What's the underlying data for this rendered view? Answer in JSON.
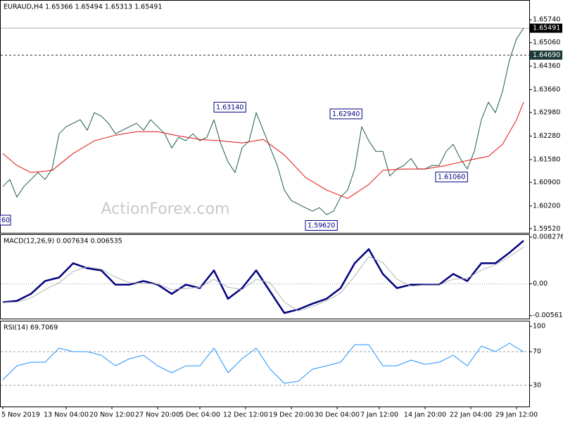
{
  "chart_data": [
    {
      "type": "line",
      "title": "EURAUD,H4  1.65366 1.65494 1.65313 1.65491",
      "watermark": "ActionForex.com",
      "clipped_label": "60",
      "xlim": [
        0,
        74
      ],
      "ylim": [
        1.594,
        1.6633
      ],
      "yticks": [
        {
          "value": 1.6574,
          "label": "1.65740"
        },
        {
          "value": 1.6506,
          "label": "1.65060"
        },
        {
          "value": 1.6436,
          "label": "1.64360"
        },
        {
          "value": 1.6366,
          "label": "1.63660"
        },
        {
          "value": 1.6298,
          "label": "1.62980"
        },
        {
          "value": 1.6228,
          "label": "1.62280"
        },
        {
          "value": 1.6158,
          "label": "1.61580"
        },
        {
          "value": 1.609,
          "label": "1.60900"
        },
        {
          "value": 1.602,
          "label": "1.60200"
        },
        {
          "value": 1.5952,
          "label": "1.59520"
        }
      ],
      "hlines": [
        {
          "value": 1.65491,
          "label": "1.65491",
          "style": "solid"
        },
        {
          "value": 1.6469,
          "label": "1.64690",
          "style": "dashed"
        }
      ],
      "annotations": [
        {
          "x": 30,
          "value": 1.6314,
          "label": "1.63140"
        },
        {
          "x": 46.5,
          "value": 1.6294,
          "label": "1.62940"
        },
        {
          "x": 61.5,
          "value": 1.6106,
          "label": "1.61060"
        },
        {
          "x": 43,
          "value": 1.5962,
          "label": "1.59620"
        }
      ],
      "series": [
        {
          "color": "#1d5a4a",
          "values": [
            1.60777,
            1.60986,
            1.60463,
            1.60777,
            1.60986,
            1.61195,
            1.60986,
            1.613,
            1.62347,
            1.62557,
            1.62661,
            1.62766,
            1.62452,
            1.62976,
            1.62871,
            1.62661,
            1.62347,
            1.62452,
            1.62557,
            1.62661,
            1.62452,
            1.62766,
            1.62557,
            1.62347,
            1.61928,
            1.62243,
            1.62138,
            1.62347,
            1.62138,
            1.62243,
            1.62766,
            1.62033,
            1.6151,
            1.61195,
            1.61928,
            1.62138,
            1.62976,
            1.62452,
            1.61928,
            1.61405,
            1.60672,
            1.60358,
            1.60253,
            1.60148,
            1.60044,
            1.60148,
            1.59939,
            1.60044,
            1.60463,
            1.60672,
            1.613,
            1.62557,
            1.62138,
            1.61824,
            1.61824,
            1.61091,
            1.613,
            1.61405,
            1.61614,
            1.613,
            1.613,
            1.61405,
            1.61405,
            1.61824,
            1.62033,
            1.61614,
            1.613,
            1.61824,
            1.62766,
            1.6329,
            1.62976,
            1.63604,
            1.64546,
            1.65175,
            1.65491
          ]
        },
        {
          "color": "#e01010",
          "x": [
            0,
            2,
            4,
            7,
            10,
            13,
            16,
            19,
            22,
            25,
            28,
            31,
            34,
            37,
            40,
            43,
            46,
            49,
            52,
            54,
            57,
            60,
            63,
            66,
            69,
            71,
            73,
            74
          ],
          "values": [
            1.61761,
            1.61405,
            1.61195,
            1.61258,
            1.61761,
            1.62138,
            1.62305,
            1.6241,
            1.6241,
            1.62285,
            1.6218,
            1.62138,
            1.62075,
            1.6218,
            1.61719,
            1.61049,
            1.60672,
            1.60421,
            1.60839,
            1.61258,
            1.613,
            1.613,
            1.61405,
            1.61552,
            1.61677,
            1.62033,
            1.62766,
            1.6329
          ]
        }
      ]
    },
    {
      "type": "line",
      "title": "MACD(12,26,9) 0.007634 0.006535",
      "xlim": [
        0,
        37
      ],
      "ylim": [
        -0.00614,
        0.00878
      ],
      "yticks": [
        0.008276,
        {
          "value": 0,
          "label": "0.00"
        },
        -0.00561
      ],
      "levels": [
        0
      ],
      "series": [
        {
          "color": "#000080",
          "values": [
            -0.00326,
            -0.00301,
            -0.00176,
            0.0005,
            0.00113,
            0.00364,
            0.00276,
            0.00238,
            -0.00013,
            -0.00013,
            0.0005,
            -0.00013,
            -0.00176,
            -0.00013,
            -0.00075,
            0.00238,
            -0.00263,
            -0.00075,
            0.00238,
            -0.00138,
            -0.00514,
            -0.00451,
            -0.00351,
            -0.00263,
            -0.00075,
            0.00364,
            0.00614,
            0.00176,
            -0.00075,
            -0.00013,
            -0.00013,
            -0.00013,
            0.00176,
            0.0005,
            0.00364,
            0.00364,
            0.00552,
            0.00763
          ]
        },
        {
          "color": "#b4b4b4",
          "values": [
            -0.0033,
            -0.0032,
            -0.0025,
            -0.001,
            0.0002,
            0.0022,
            0.003,
            0.0026,
            0.0012,
            0.0002,
            0.0001,
            0,
            -0.001,
            -0.0008,
            -0.0006,
            0.0008,
            -0.0006,
            -0.001,
            0.0008,
            0.0002,
            -0.0032,
            -0.0048,
            -0.004,
            -0.003,
            -0.0016,
            0.0014,
            0.0048,
            0.0038,
            0.0008,
            -0.0004,
            -0.0002,
            -0.0002,
            0.0008,
            0.001,
            0.0024,
            0.0034,
            0.0048,
            0.0065
          ]
        }
      ]
    },
    {
      "type": "line",
      "title": "RSI(14) 69.7069",
      "xlim": [
        0,
        37
      ],
      "ylim": [
        5,
        106.7
      ],
      "yticks": [
        100,
        70,
        30
      ],
      "levels": [
        70,
        30
      ],
      "series": [
        {
          "color": "#1e90ff",
          "values": [
            36.7,
            53.3,
            57.5,
            57.5,
            74.2,
            70,
            70,
            65.8,
            53.3,
            61.7,
            65.8,
            53.3,
            45,
            53.3,
            53.3,
            74.2,
            45,
            61.7,
            74.2,
            49.2,
            32.5,
            35,
            49.2,
            53.3,
            57.5,
            78.3,
            78.3,
            53.3,
            53.3,
            60,
            55,
            57.5,
            65.8,
            53.3,
            76.7,
            70,
            80,
            69.7
          ]
        }
      ],
      "xticks": [
        {
          "value": 0,
          "label": "5 Nov 2019"
        },
        {
          "value": 4.5,
          "label": "13 Nov 04:00"
        },
        {
          "value": 7.75,
          "label": "20 Nov 12:00"
        },
        {
          "value": 11,
          "label": "27 Nov 20:00"
        },
        {
          "value": 14,
          "label": "5 Dec 04:00"
        },
        {
          "value": 17.25,
          "label": "12 Dec 12:00"
        },
        {
          "value": 20.5,
          "label": "19 Dec 20:00"
        },
        {
          "value": 23.75,
          "label": "30 Dec 04:00"
        },
        {
          "value": 26.75,
          "label": "7 Jan 12:00"
        },
        {
          "value": 30,
          "label": "14 Jan 20:00"
        },
        {
          "value": 33.25,
          "label": "22 Jan 04:00"
        },
        {
          "value": 36.5,
          "label": "29 Jan 12:00"
        }
      ]
    }
  ]
}
